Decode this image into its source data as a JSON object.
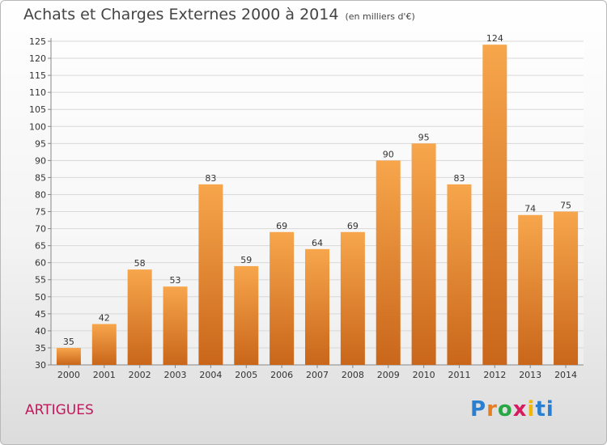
{
  "header": {
    "title": "Achats et Charges Externes 2000 à 2014",
    "subtitle": "(en milliers d'€)"
  },
  "footer": {
    "location": "ARTIGUES",
    "brand_letters": [
      "P",
      "r",
      "o",
      "x",
      "i",
      "ti"
    ]
  },
  "colors": {
    "bar_light": "#f7a64c",
    "bar_dark": "#c9661a",
    "grid": "#d8d8d8",
    "location": "#c2185b"
  },
  "chart_data": {
    "type": "bar",
    "title": "Achats et Charges Externes 2000 à 2014",
    "subtitle": "(en milliers d'€)",
    "categories": [
      "2000",
      "2001",
      "2002",
      "2003",
      "2004",
      "2005",
      "2006",
      "2007",
      "2008",
      "2009",
      "2010",
      "2011",
      "2012",
      "2013",
      "2014"
    ],
    "values": [
      35,
      42,
      58,
      53,
      83,
      59,
      69,
      64,
      69,
      90,
      95,
      83,
      124,
      74,
      75
    ],
    "ylim": [
      30,
      125
    ],
    "yticks": [
      30,
      35,
      40,
      45,
      50,
      55,
      60,
      65,
      70,
      75,
      80,
      85,
      90,
      95,
      100,
      105,
      110,
      115,
      120,
      125
    ],
    "grid": true,
    "data_labels": true
  }
}
